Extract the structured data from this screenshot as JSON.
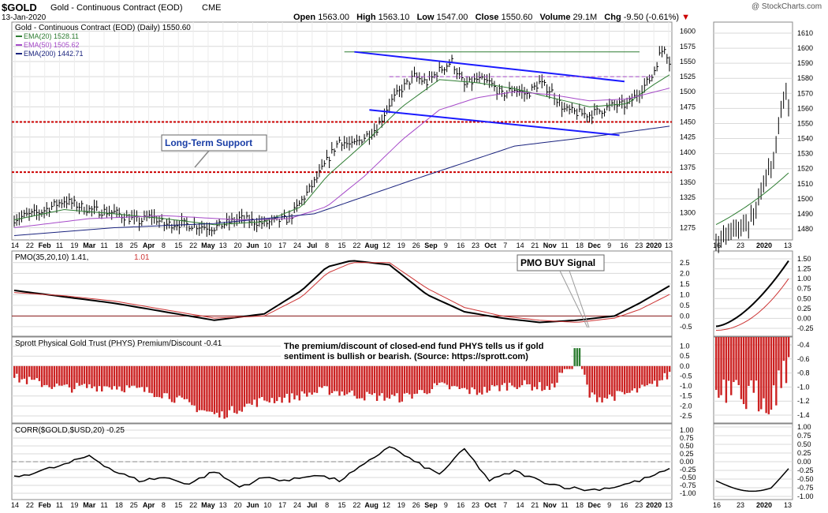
{
  "header": {
    "symbol": "$GOLD",
    "name": "Gold - Continuous Contract (EOD)",
    "exchange": "CME",
    "date": "13-Jan-2020",
    "watermark": "@ StockCharts.com",
    "open_label": "Open",
    "open": "1563.00",
    "high_label": "High",
    "high": "1563.10",
    "low_label": "Low",
    "low": "1547.00",
    "close_label": "Close",
    "close": "1550.60",
    "volume_label": "Volume",
    "volume": "29.1M",
    "chg_label": "Chg",
    "chg": "-9.50 (-0.61%)"
  },
  "colors": {
    "price": "#000000",
    "ema20": "#2e7d32",
    "ema50": "#a64ac9",
    "ema200": "#1a237e",
    "pmo": "#000000",
    "pmo_signal": "#cc3333",
    "bar_negative": "#cc2222",
    "bar_positive": "#2e7d32",
    "support": "#cc0000",
    "trend": "#1a1aff",
    "grid": "#d9d9d9",
    "annotation_text": "#1a3ea6",
    "down": "#cc0000"
  },
  "chart_data": [
    {
      "type": "line",
      "title": "Gold - Continuous Contract (EOD) (Daily) 1550.60",
      "legend": [
        {
          "name": "EMA(20)",
          "value": "1528.11"
        },
        {
          "name": "EMA(50)",
          "value": "1505.62"
        },
        {
          "name": "EMA(200)",
          "value": "1442.71"
        }
      ],
      "x_ticks": [
        "14",
        "22",
        "Feb",
        "11",
        "19",
        "Mar",
        "11",
        "18",
        "25",
        "Apr",
        "8",
        "15",
        "22",
        "May",
        "13",
        "20",
        "Jun",
        "10",
        "17",
        "24",
        "Jul",
        "8",
        "15",
        "22",
        "Aug",
        "12",
        "19",
        "26",
        "Sep",
        "9",
        "16",
        "23",
        "Oct",
        "7",
        "14",
        "21",
        "Nov",
        "11",
        "18",
        "Dec",
        "9",
        "16",
        "23",
        "2020",
        "13"
      ],
      "y_ticks": [
        1275,
        1300,
        1325,
        1350,
        1375,
        1400,
        1425,
        1450,
        1475,
        1500,
        1525,
        1550,
        1575,
        1600
      ],
      "ylim": [
        1260,
        1610
      ],
      "series": [
        {
          "name": "Price",
          "x": [
            0,
            10,
            20,
            30,
            40,
            50,
            55,
            60,
            65,
            70,
            80,
            90,
            100,
            110,
            120,
            125,
            130,
            135,
            140,
            145,
            150,
            155,
            160,
            165,
            170,
            175,
            180,
            185,
            190,
            195,
            200,
            205,
            210,
            215,
            220,
            225,
            230,
            235,
            240,
            245,
            250,
            255,
            258,
            260,
            262
          ],
          "values": [
            1290,
            1300,
            1320,
            1305,
            1300,
            1285,
            1295,
            1280,
            1282,
            1280,
            1275,
            1290,
            1282,
            1290,
            1350,
            1385,
            1420,
            1410,
            1425,
            1440,
            1480,
            1505,
            1525,
            1515,
            1535,
            1550,
            1510,
            1520,
            1515,
            1495,
            1505,
            1495,
            1515,
            1500,
            1470,
            1465,
            1462,
            1470,
            1478,
            1478,
            1500,
            1525,
            1560,
            1575,
            1550
          ]
        },
        {
          "name": "EMA(20)",
          "x": [
            0,
            20,
            40,
            60,
            80,
            100,
            115,
            125,
            140,
            155,
            170,
            185,
            200,
            215,
            230,
            245,
            255,
            262
          ],
          "values": [
            1288,
            1305,
            1298,
            1290,
            1280,
            1285,
            1310,
            1360,
            1415,
            1475,
            1520,
            1515,
            1505,
            1490,
            1475,
            1480,
            1510,
            1528
          ]
        },
        {
          "name": "EMA(50)",
          "x": [
            0,
            30,
            60,
            90,
            110,
            125,
            140,
            155,
            170,
            185,
            200,
            215,
            230,
            245,
            262
          ],
          "values": [
            1275,
            1290,
            1295,
            1288,
            1290,
            1310,
            1360,
            1420,
            1470,
            1490,
            1500,
            1495,
            1485,
            1488,
            1506
          ]
        },
        {
          "name": "EMA(200)",
          "x": [
            0,
            40,
            80,
            120,
            160,
            200,
            230,
            262
          ],
          "values": [
            1262,
            1275,
            1282,
            1298,
            1355,
            1410,
            1425,
            1443
          ]
        }
      ],
      "annotations": [
        "Long-Term Support"
      ],
      "support_levels": [
        1450,
        1367
      ],
      "right_panel": {
        "x_ticks": [
          "16",
          "23",
          "2020",
          "13"
        ],
        "y_ticks": [
          1480,
          1490,
          1500,
          1510,
          1520,
          1530,
          1540,
          1550,
          1560,
          1570,
          1580,
          1590,
          1600,
          1610
        ]
      }
    },
    {
      "type": "line",
      "title": "PMO(35,20,10) 1.41, 1.01",
      "series": [
        {
          "name": "PMO",
          "x": [
            0,
            20,
            40,
            60,
            80,
            100,
            115,
            125,
            135,
            150,
            165,
            180,
            195,
            210,
            225,
            240,
            250,
            262
          ],
          "values": [
            1.2,
            0.9,
            0.6,
            0.2,
            -0.2,
            0.1,
            1.2,
            2.3,
            2.6,
            2.4,
            1.0,
            0.2,
            -0.1,
            -0.3,
            -0.2,
            0.0,
            0.6,
            1.41
          ]
        },
        {
          "name": "Signal",
          "x": [
            0,
            20,
            40,
            60,
            80,
            100,
            115,
            125,
            135,
            150,
            165,
            180,
            195,
            210,
            225,
            240,
            250,
            262
          ],
          "values": [
            1.1,
            0.95,
            0.7,
            0.3,
            -0.1,
            0.0,
            0.9,
            2.0,
            2.5,
            2.5,
            1.3,
            0.4,
            0.0,
            -0.2,
            -0.3,
            -0.1,
            0.3,
            1.01
          ]
        }
      ],
      "y_ticks": [
        -0.5,
        0.0,
        0.5,
        1.0,
        1.5,
        2.0,
        2.5
      ],
      "ylim": [
        -0.8,
        2.9
      ],
      "annotations": [
        "PMO BUY Signal"
      ],
      "right_panel": {
        "y_ticks": [
          -0.25,
          0.0,
          0.25,
          0.5,
          0.75,
          1.0,
          1.25,
          1.5
        ]
      }
    },
    {
      "type": "bar",
      "title": "Sprott Physical Gold Trust (PHYS) Premium/Discount -0.41",
      "note": "The premium/discount of closed-end fund PHYS tells us if gold sentiment is bullish or bearish. (Source: https://sprott.com)",
      "series": [
        {
          "name": "Premium/Discount",
          "x": [
            0,
            20,
            40,
            60,
            75,
            82,
            90,
            100,
            110,
            125,
            140,
            155,
            170,
            185,
            200,
            215,
            225,
            230,
            235,
            245,
            255,
            262
          ],
          "values": [
            -0.6,
            -1.1,
            -1.0,
            -1.4,
            -2.2,
            -2.5,
            -2.1,
            -1.7,
            -1.6,
            -1.2,
            -1.5,
            -1.6,
            -1.0,
            -1.3,
            -0.9,
            -1.1,
            0.9,
            -1.5,
            -1.6,
            -1.4,
            -1.0,
            -0.41
          ]
        }
      ],
      "y_ticks": [
        -2.5,
        -2.0,
        -1.5,
        -1.0,
        -0.5,
        0.0,
        0.5,
        1.0
      ],
      "ylim": [
        -2.7,
        1.3
      ],
      "right_panel": {
        "y_ticks": [
          -1.4,
          -1.2,
          -1.0,
          -0.8,
          -0.6,
          -0.4
        ]
      }
    },
    {
      "type": "line",
      "title": "CORR($GOLD,$USD,20) -0.25",
      "series": [
        {
          "name": "CORR",
          "x": [
            0,
            10,
            20,
            30,
            40,
            50,
            60,
            70,
            80,
            90,
            100,
            110,
            120,
            130,
            140,
            150,
            160,
            170,
            180,
            190,
            200,
            210,
            220,
            230,
            240,
            250,
            262
          ],
          "values": [
            -0.5,
            -0.3,
            -0.1,
            0.2,
            -0.3,
            -0.6,
            -0.5,
            -0.7,
            -0.3,
            -0.8,
            -0.5,
            -0.6,
            -0.4,
            -0.6,
            -0.1,
            0.5,
            0.0,
            -0.4,
            0.4,
            -0.6,
            -0.3,
            -0.6,
            -0.8,
            -0.9,
            -0.8,
            -0.6,
            -0.25
          ]
        }
      ],
      "y_ticks": [
        -1.0,
        -0.75,
        -0.5,
        -0.25,
        0.0,
        0.25,
        0.5,
        0.75,
        1.0
      ],
      "ylim": [
        -1.1,
        1.1
      ],
      "right_panel": {
        "y_ticks": [
          -1.0,
          -0.75,
          -0.5,
          -0.25,
          0.0,
          0.25,
          0.5,
          0.75,
          1.0
        ]
      }
    }
  ]
}
